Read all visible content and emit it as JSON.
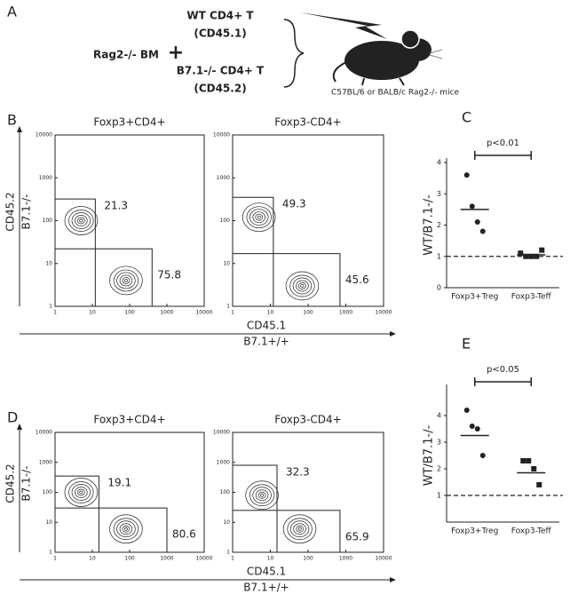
{
  "panel_a": {
    "letter": "A",
    "wt_cells": "WT CD4+ T",
    "wt_marker": "(CD45.1)",
    "bm": "Rag2-/- BM",
    "plus": "+",
    "ko_cells": "B7.1-/- CD4+ T",
    "ko_marker": "(CD45.2)",
    "recipient": "C57BL/6 or BALB/c Rag2-/- mice"
  },
  "chart_data": [
    {
      "type": "flow",
      "letter": "B",
      "title": "Foxp3+CD4+",
      "ylabel": [
        "CD45.2",
        "B7.1-/-"
      ],
      "xlabel": [
        "CD45.1",
        "B7.1+/+"
      ],
      "log": true,
      "xlim": [
        1,
        10000
      ],
      "ylim": [
        1,
        10000
      ],
      "xticks": [
        1,
        10,
        100,
        1000,
        10000
      ],
      "yticks": [
        1,
        10,
        100,
        1000,
        10000
      ],
      "gates": [
        {
          "label": "21.3",
          "x": [
            1,
            12
          ],
          "y": [
            22,
            320
          ]
        },
        {
          "label": "75.8",
          "x": [
            12,
            400
          ],
          "y": [
            1,
            22
          ]
        }
      ],
      "populations": [
        {
          "x": 5,
          "y": 100
        },
        {
          "x": 80,
          "y": 4
        }
      ]
    },
    {
      "type": "flow",
      "title": "Foxp3-CD4+",
      "log": true,
      "xlim": [
        1,
        10000
      ],
      "ylim": [
        1,
        10000
      ],
      "xticks": [
        1,
        10,
        100,
        1000,
        10000
      ],
      "yticks": [
        1,
        10,
        100,
        1000,
        10000
      ],
      "gates": [
        {
          "label": "49.3",
          "x": [
            1,
            12
          ],
          "y": [
            17,
            350
          ]
        },
        {
          "label": "45.6",
          "x": [
            12,
            700
          ],
          "y": [
            1,
            17
          ]
        }
      ],
      "populations": [
        {
          "x": 5,
          "y": 120
        },
        {
          "x": 70,
          "y": 3
        }
      ]
    },
    {
      "type": "dot",
      "letter": "C",
      "ylabel": "WT/B7.1-/-",
      "annotation": "p<0.01",
      "categories": [
        "Foxp3+Treg",
        "Foxp3-Teff"
      ],
      "values": [
        [
          3.6,
          2.6,
          2.1,
          1.8
        ],
        [
          1.1,
          1.0,
          1.0,
          1.0,
          1.2
        ]
      ],
      "means": [
        2.5,
        1.05
      ],
      "markers": [
        "circle",
        "square"
      ],
      "reference_line": 1,
      "ylim": [
        0,
        4
      ],
      "yticks": [
        0,
        1,
        2,
        3,
        4
      ],
      "color": "#222222"
    },
    {
      "type": "flow",
      "letter": "D",
      "title": "Foxp3+CD4+",
      "ylabel": [
        "CD45.2",
        "B7.1-/-"
      ],
      "xlabel": [
        "CD45.1",
        "B7.1+/+"
      ],
      "log": true,
      "xlim": [
        1,
        10000
      ],
      "ylim": [
        1,
        10000
      ],
      "xticks": [
        1,
        10,
        100,
        1000,
        10000
      ],
      "yticks": [
        1,
        10,
        100,
        1000,
        10000
      ],
      "gates": [
        {
          "label": "19.1",
          "x": [
            1,
            15
          ],
          "y": [
            30,
            350
          ]
        },
        {
          "label": "80.6",
          "x": [
            15,
            1000
          ],
          "y": [
            1,
            30
          ]
        }
      ],
      "populations": [
        {
          "x": 5,
          "y": 100
        },
        {
          "x": 80,
          "y": 6
        }
      ]
    },
    {
      "type": "flow",
      "title": "Foxp3-CD4+",
      "log": true,
      "xlim": [
        1,
        10000
      ],
      "ylim": [
        1,
        10000
      ],
      "xticks": [
        1,
        10,
        100,
        1000,
        10000
      ],
      "yticks": [
        1,
        10,
        100,
        1000,
        10000
      ],
      "gates": [
        {
          "label": "32.3",
          "x": [
            1,
            15
          ],
          "y": [
            25,
            800
          ]
        },
        {
          "label": "65.9",
          "x": [
            15,
            700
          ],
          "y": [
            1,
            25
          ]
        }
      ],
      "populations": [
        {
          "x": 6,
          "y": 80
        },
        {
          "x": 60,
          "y": 6
        }
      ]
    },
    {
      "type": "dot",
      "letter": "E",
      "ylabel": "WT/B7.1-/-",
      "annotation": "p<0.05",
      "categories": [
        "Foxp3+Treg",
        "Foxp3-Teff"
      ],
      "values": [
        [
          4.2,
          3.6,
          3.5,
          2.5
        ],
        [
          2.3,
          2.3,
          2.0,
          1.4
        ]
      ],
      "means": [
        3.25,
        1.85
      ],
      "markers": [
        "circle",
        "square"
      ],
      "reference_line": 1,
      "ylim": [
        0,
        5
      ],
      "yticks": [
        1,
        2,
        3,
        4
      ],
      "color": "#222222"
    }
  ]
}
